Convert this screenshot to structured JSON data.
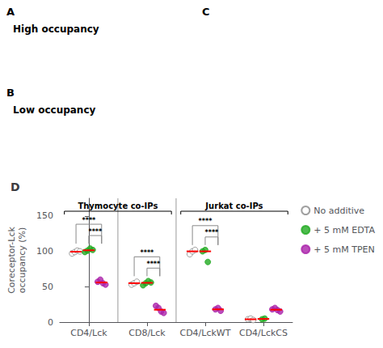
{
  "chart_data": {
    "type": "scatter",
    "title": "D",
    "annotations": [
      "A",
      "High occupancy",
      "B",
      "Low occupancy",
      "C"
    ],
    "categories": [
      "CD4/Lck",
      "CD8/Lck",
      "CD4/LckWT",
      "CD4/LckCS"
    ],
    "sections": [
      {
        "label": "Thymocyte co-IPs",
        "categories": [
          "CD4/Lck",
          "CD8/Lck"
        ]
      },
      {
        "label": "Jurkat co-IPs",
        "categories": [
          "CD4/LckWT",
          "CD4/LckCS"
        ]
      }
    ],
    "ylabel": "Coreceptor-Lck\noccupancy (%)",
    "ylim": [
      0,
      175
    ],
    "yticks": [
      0,
      50,
      100,
      150
    ],
    "grid": false,
    "legend": "right",
    "median_color": "#ff0000",
    "series": [
      {
        "name": "No additive",
        "color": "#ffffff",
        "edge_color": "#888888",
        "values": [
          [
            97,
            99,
            101,
            100
          ],
          [
            53,
            55,
            57
          ],
          [
            96,
            100,
            102
          ],
          [
            4,
            5,
            3
          ]
        ],
        "medians": [
          99.5,
          55,
          100,
          4
        ]
      },
      {
        "name": "+ 5 mM EDTA",
        "color": "#22aa22",
        "values": [
          [
            99,
            101,
            104,
            102
          ],
          [
            52,
            55,
            58,
            56
          ],
          [
            100,
            102,
            85
          ],
          [
            4,
            5
          ]
        ],
        "medians": [
          101.5,
          55.5,
          100,
          4.5
        ]
      },
      {
        "name": "+ 5 mM TPEN",
        "color": "#aa22aa",
        "values": [
          [
            57,
            60,
            55,
            53
          ],
          [
            23,
            20,
            15,
            13
          ],
          [
            18,
            20,
            16
          ],
          [
            18,
            20,
            17,
            15
          ]
        ],
        "medians": [
          56,
          17.5,
          18,
          17.5
        ]
      }
    ],
    "significance": [
      {
        "category": "CD4/Lck",
        "pairs": [
          [
            "No additive",
            "+ 5 mM TPEN",
            "****"
          ],
          [
            "+ 5 mM EDTA",
            "+ 5 mM TPEN",
            "****"
          ]
        ]
      },
      {
        "category": "CD8/Lck",
        "pairs": [
          [
            "No additive",
            "+ 5 mM TPEN",
            "****"
          ],
          [
            "+ 5 mM EDTA",
            "+ 5 mM TPEN",
            "****"
          ]
        ]
      },
      {
        "category": "CD4/LckWT",
        "pairs": [
          [
            "No additive",
            "+ 5 mM TPEN",
            "****"
          ],
          [
            "+ 5 mM EDTA",
            "+ 5 mM TPEN",
            "****"
          ]
        ]
      }
    ]
  }
}
